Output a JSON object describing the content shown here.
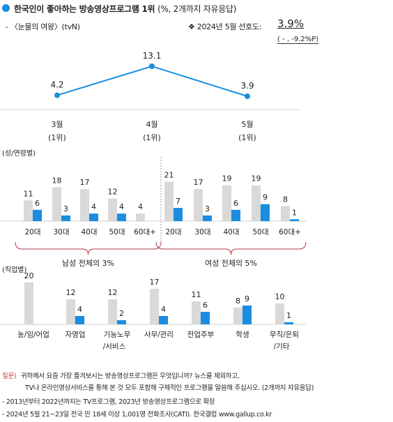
{
  "header": {
    "title": "한국인이 좋아하는 방송영상프로그램 1위",
    "title_unit": "(%, 2개까지 자유응답)",
    "program": "- 〈눈물의 여왕〉(tvN)",
    "pref_prefix": "❖  2024년 5월 선호도:",
    "pref_value": "3.9%",
    "change": "( - , -9.2%P)"
  },
  "chart_data": [
    {
      "type": "line",
      "categories": [
        "3월",
        "4월",
        "5월"
      ],
      "rank_labels": [
        "(1위)",
        "(1위)",
        "(1위)"
      ],
      "values": [
        4.2,
        13.1,
        3.9
      ],
      "color": "#1a8de0"
    },
    {
      "type": "bar",
      "section_label": "(성/연령별)",
      "groups": [
        {
          "label": "남성 전체의 3%",
          "categories": [
            "20대",
            "30대",
            "40대",
            "50대",
            "60대+"
          ],
          "series": [
            {
              "values": [
                11,
                18,
                17,
                12,
                4
              ],
              "color": "#d9d9d9"
            },
            {
              "values": [
                6,
                3,
                4,
                4,
                null
              ],
              "color": "#1a8de0"
            }
          ]
        },
        {
          "label": "여성 전체의 5%",
          "categories": [
            "20대",
            "30대",
            "40대",
            "50대",
            "60대+"
          ],
          "series": [
            {
              "values": [
                21,
                17,
                19,
                19,
                8
              ],
              "color": "#d9d9d9"
            },
            {
              "values": [
                7,
                3,
                6,
                9,
                1
              ],
              "color": "#1a8de0"
            }
          ]
        }
      ]
    },
    {
      "type": "bar",
      "section_label": "(직업별)",
      "categories": [
        "농/임/어업",
        "자영업",
        "기능노무\n/서비스",
        "사무/관리",
        "전업주부",
        "학생",
        "무직/은퇴\n/기타"
      ],
      "series": [
        {
          "values": [
            20,
            12,
            12,
            17,
            11,
            8,
            10
          ],
          "color": "#d9d9d9"
        },
        {
          "values": [
            null,
            4,
            2,
            4,
            6,
            9,
            1
          ],
          "color": "#1a8de0"
        }
      ]
    }
  ],
  "footer": {
    "q_label": "질문)",
    "q_line1": "귀하께서 요즘 가장 즐겨보시는 방송영상프로그램은 무엇입니까? 뉴스를 제외하고,",
    "q_line2": "TV나 온라인영상서비스를 통해 본 것 모두 포함해 구체적인 프로그램을 말씀해 주십시오. (2개까지 자유응답)",
    "note1": "- 2013년부터 2022년까지는 TV프로그램, 2023년 방송영상프로그램으로 확장",
    "note2": "- 2024년 5월 21~23일 전국 만 18세 이상 1,001명 전화조사(CATI). 한국갤럽 www.gallup.co.kr"
  }
}
